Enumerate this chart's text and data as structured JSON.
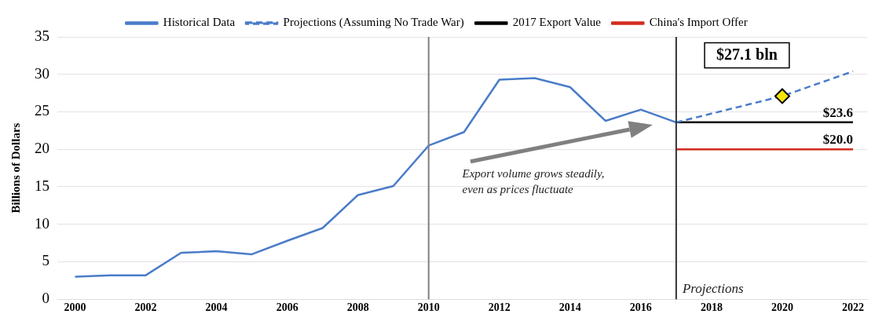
{
  "chart_data": {
    "type": "line",
    "ylabel": "Billions of Dollars",
    "xlim": [
      1999.5,
      2022.4
    ],
    "xticks": [
      2000,
      2002,
      2004,
      2006,
      2008,
      2010,
      2012,
      2014,
      2016,
      2018,
      2020,
      2022
    ],
    "ylim": [
      0,
      35
    ],
    "yticks": [
      0,
      5,
      10,
      15,
      20,
      25,
      30,
      35
    ],
    "grid": "y",
    "legend": "top",
    "marker": "none",
    "series": [
      {
        "name": "Historical Data",
        "color": "#4a7cc9",
        "x": [
          2000,
          2001,
          2002,
          2003,
          2004,
          2005,
          2006,
          2007,
          2008,
          2009,
          2010,
          2011,
          2012,
          2013,
          2014,
          2015,
          2016,
          2017
        ],
        "values": [
          3.0,
          3.2,
          3.2,
          6.2,
          6.4,
          6.0,
          7.8,
          9.5,
          13.9,
          15.1,
          20.5,
          22.3,
          29.3,
          29.5,
          28.3,
          23.8,
          25.3,
          23.6
        ]
      },
      {
        "name": "Projections (Assuming No Trade War)",
        "color": "#4a7cc9",
        "line_style": "dashed",
        "x": [
          2017,
          2020,
          2022
        ],
        "values": [
          23.6,
          27.1,
          30.4
        ]
      },
      {
        "name": "2017 Export Value",
        "color": "#000000",
        "x": [
          2017,
          2022
        ],
        "values": [
          23.6,
          23.6
        ],
        "value_labels": [
          null,
          "$23.6"
        ]
      },
      {
        "name": "China's Import Offer",
        "color": "#d22b1f",
        "x": [
          2017,
          2022
        ],
        "values": [
          20.0,
          20.0
        ],
        "value_labels": [
          null,
          "$20.0"
        ]
      },
      {
        "type": "scatter",
        "marker": "diamond",
        "color": "#f5e50a",
        "x": [
          2020
        ],
        "values": [
          27.1
        ]
      }
    ],
    "ref_lines": [
      {
        "axis": "x",
        "value": 2010,
        "color": "#808080"
      },
      {
        "axis": "x",
        "value": 2017,
        "color": "#333333",
        "label": "Projections"
      }
    ],
    "annotations": [
      {
        "text": "$27.1 bln",
        "x": 2020,
        "y": 27.1
      },
      "Export volume grows steadily,\neven as prices fluctuate"
    ]
  }
}
